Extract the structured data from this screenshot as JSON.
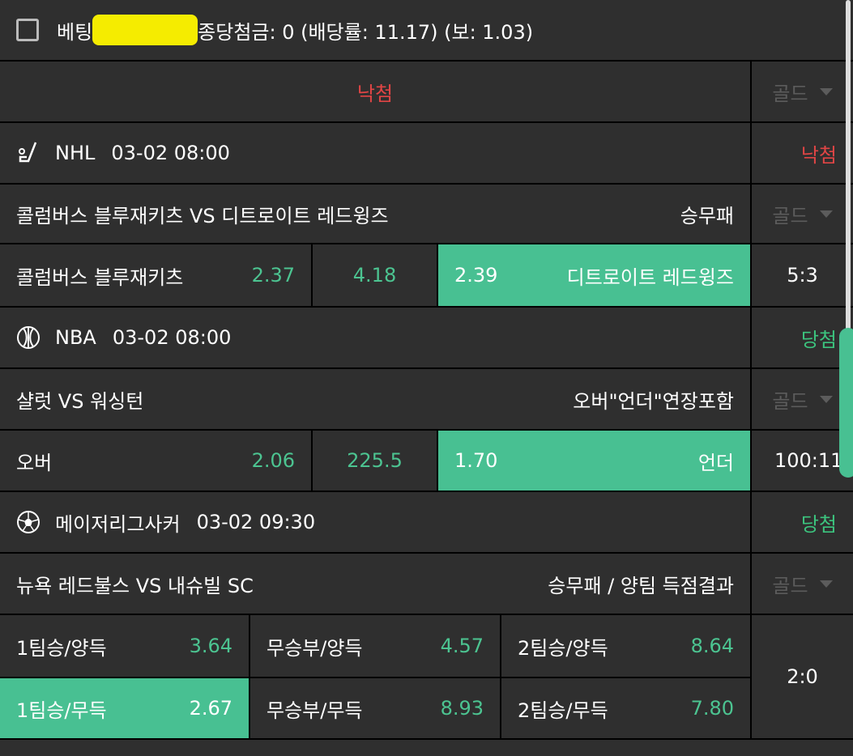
{
  "header": {
    "prefix": "베팅",
    "suffix": "종당첨금: 0 (배당률: 11.17) (보: 1.03)"
  },
  "summary": {
    "status": "낙첨",
    "option": "골드"
  },
  "colors": {
    "win": "#3cc47e",
    "lose": "#e04545",
    "accent": "#48c092"
  },
  "games": [
    {
      "icon": "hockey-icon",
      "league": "NHL",
      "time": "03-02 08:00",
      "status": "낙첨",
      "match": "콜럼버스 블루재키츠 VS 디트로이트 레드윙즈",
      "market": "승무패",
      "option": "골드",
      "home": "콜럼버스 블루재키츠",
      "home_odds": "2.37",
      "mid": "4.18",
      "away_odds": "2.39",
      "away": "디트로이트 레드윙즈",
      "score": "5:3"
    },
    {
      "icon": "basketball-icon",
      "league": "NBA",
      "time": "03-02 08:00",
      "status": "당첨",
      "match": "샬럿 VS 워싱턴",
      "market": "오버\"언더\"연장포함",
      "option": "골드",
      "home": "오버",
      "home_odds": "2.06",
      "mid": "225.5",
      "away_odds": "1.70",
      "away": "언더",
      "score": "100:11"
    },
    {
      "icon": "soccer-icon",
      "league": "메이저리그사커",
      "time": "03-02 09:30",
      "status": "당첨",
      "match": "뉴욕 레드불스 VS 내슈빌 SC",
      "market": "승무패 / 양팀 득점결과",
      "option": "골드",
      "score": "2:0",
      "options": [
        {
          "label": "1팀승/양득",
          "odds": "3.64"
        },
        {
          "label": "무승부/양득",
          "odds": "4.57"
        },
        {
          "label": "2팀승/양득",
          "odds": "8.64"
        },
        {
          "label": "1팀승/무득",
          "odds": "2.67"
        },
        {
          "label": "무승부/무득",
          "odds": "8.93"
        },
        {
          "label": "2팀승/무득",
          "odds": "7.80"
        }
      ]
    }
  ]
}
